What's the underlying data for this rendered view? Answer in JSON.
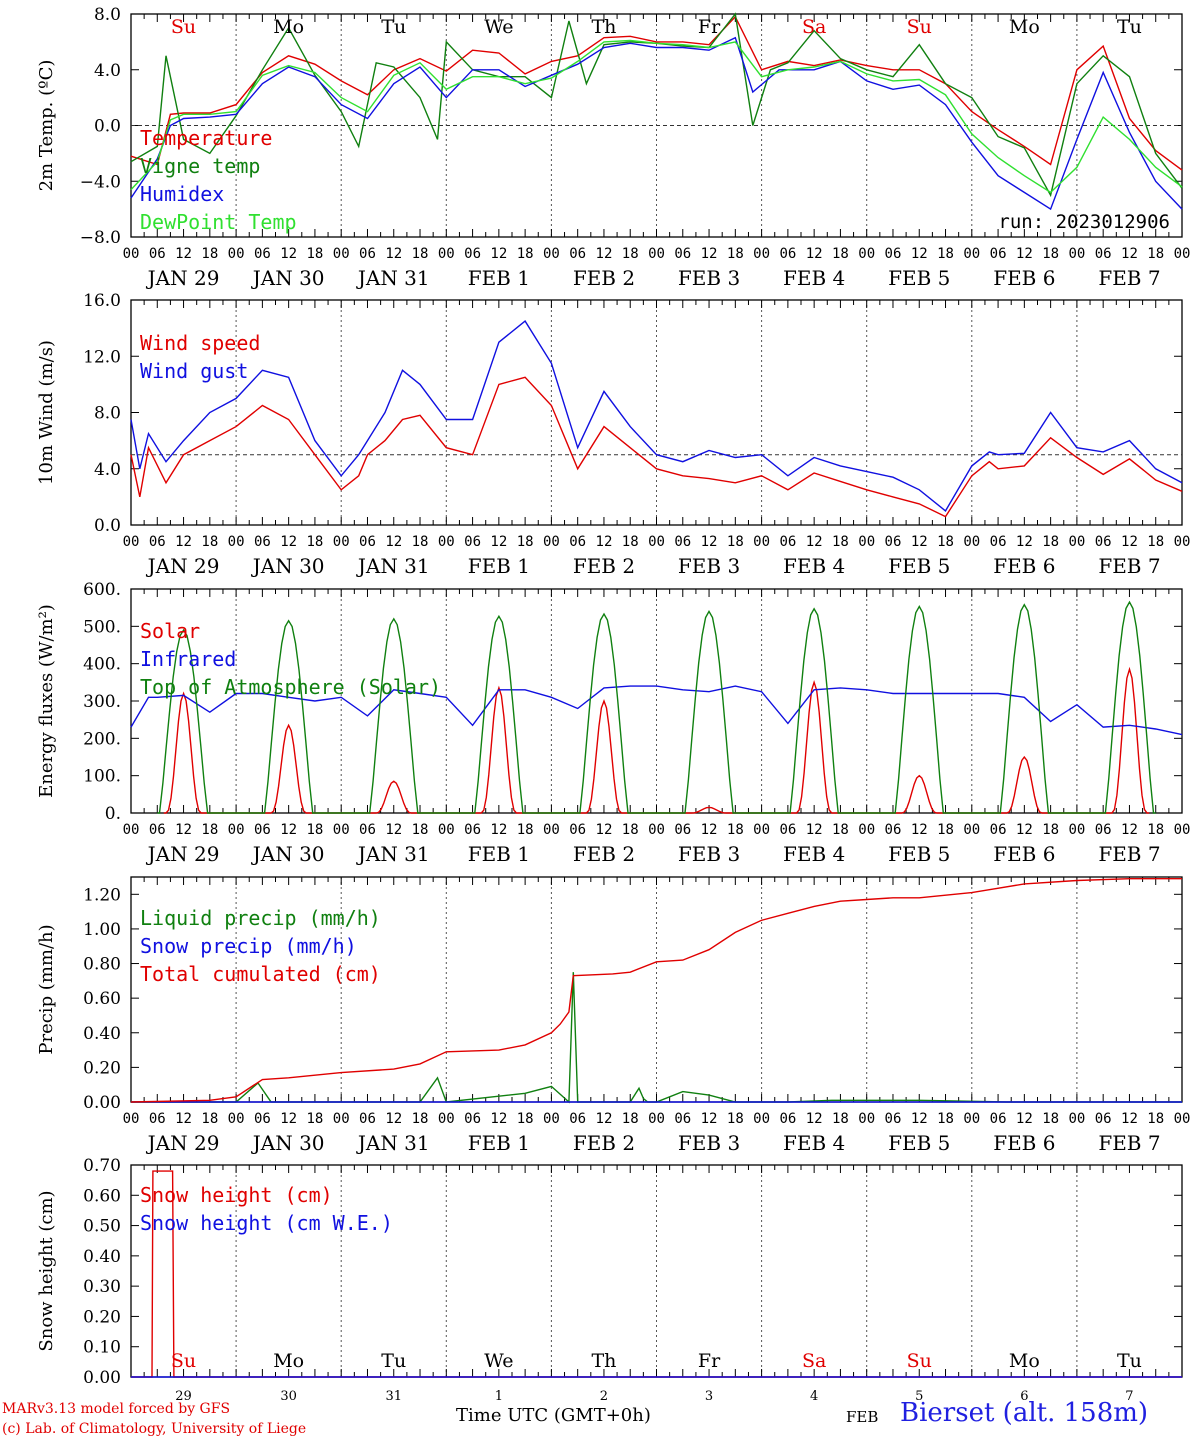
{
  "colors": {
    "red": "#e00000",
    "green": "#108010",
    "blue": "#1010e0",
    "lightgreen": "#30e030",
    "black": "#000000",
    "darkgreen": "#006000"
  },
  "day_labels": [
    {
      "label": "Su",
      "color": "#e00000"
    },
    {
      "label": "Mo",
      "color": "#000000"
    },
    {
      "label": "Tu",
      "color": "#000000"
    },
    {
      "label": "We",
      "color": "#000000"
    },
    {
      "label": "Th",
      "color": "#000000"
    },
    {
      "label": "Fr",
      "color": "#000000"
    },
    {
      "label": "Sa",
      "color": "#e00000"
    },
    {
      "label": "Su",
      "color": "#e00000"
    },
    {
      "label": "Mo",
      "color": "#000000"
    },
    {
      "label": "Tu",
      "color": "#000000"
    }
  ],
  "date_labels": [
    "JAN 29",
    "JAN 30",
    "JAN 31",
    "FEB  1",
    "FEB  2",
    "FEB  3",
    "FEB  4",
    "FEB  5",
    "FEB  6",
    "FEB  7"
  ],
  "hour_ticks": [
    "00",
    "06",
    "12",
    "18"
  ],
  "bottom_day_numbers": [
    "29",
    "30",
    "31",
    "1",
    "2",
    "3",
    "4",
    "5",
    "6",
    "7"
  ],
  "footer": {
    "model_line1": "MARv3.13 model forced by GFS",
    "model_line2": "(c) Lab. of Climatology, University of Liege",
    "time_label": "Time UTC (GMT+0h)",
    "month_label": "FEB",
    "station": "Bierset (alt. 158m)"
  },
  "chart_data": [
    {
      "type": "line",
      "ylabel": "2m Temp. (ºC)",
      "ylim": [
        -8.0,
        8.0
      ],
      "yticks": [
        "8.0",
        "4.0",
        "0.0",
        "−4.0",
        "−8.0"
      ],
      "ytick_values": [
        8,
        4,
        0,
        -4,
        -8
      ],
      "reference_line": 0,
      "annotation": "run: 2023012906",
      "x_unit": "hours since JAN 29 00 UTC",
      "series": [
        {
          "name": "Temperature",
          "color": "#e00000",
          "x": [
            0,
            6,
            9,
            12,
            18,
            24,
            30,
            36,
            42,
            48,
            54,
            60,
            66,
            72,
            78,
            84,
            90,
            96,
            102,
            108,
            114,
            120,
            126,
            132,
            138,
            144,
            150,
            156,
            162,
            168,
            174,
            180,
            186,
            192,
            198,
            204,
            210,
            216,
            222,
            228,
            234,
            240
          ],
          "y": [
            -2.2,
            -2.8,
            0.8,
            0.9,
            0.9,
            1.5,
            3.8,
            5.0,
            4.4,
            3.2,
            2.2,
            4.0,
            4.8,
            3.9,
            5.4,
            5.2,
            3.7,
            4.6,
            5.0,
            6.3,
            6.4,
            6.0,
            6.0,
            5.8,
            7.8,
            4.0,
            4.6,
            4.3,
            4.7,
            4.3,
            4.0,
            4.0,
            3.0,
            1.0,
            -0.3,
            -1.5,
            -2.8,
            4.0,
            5.7,
            0.5,
            -1.8,
            -3.2
          ]
        },
        {
          "name": "Vigne temp",
          "color": "#108010",
          "x": [
            0,
            6,
            8,
            12,
            18,
            24,
            30,
            36,
            42,
            48,
            52,
            56,
            60,
            66,
            70,
            72,
            78,
            84,
            90,
            96,
            100,
            104,
            108,
            114,
            120,
            126,
            132,
            138,
            142,
            146,
            150,
            156,
            162,
            168,
            174,
            180,
            186,
            192,
            198,
            204,
            210,
            216,
            222,
            228,
            234,
            240
          ],
          "y": [
            -2.6,
            -1.5,
            5.0,
            -1.0,
            -2.0,
            0.7,
            4.0,
            7.0,
            3.6,
            1.0,
            -1.5,
            4.5,
            4.2,
            2.0,
            -1.0,
            6.0,
            4.0,
            3.5,
            3.5,
            2.0,
            7.5,
            3.0,
            5.8,
            6.0,
            5.9,
            5.7,
            5.6,
            8.0,
            0.0,
            4.0,
            4.5,
            6.8,
            4.8,
            4.0,
            3.5,
            5.8,
            3.0,
            2.0,
            -0.8,
            -1.6,
            -5.0,
            3.0,
            5.0,
            3.5,
            -2.0,
            -4.5
          ]
        },
        {
          "name": "Humidex",
          "color": "#1010e0",
          "x": [
            0,
            6,
            9,
            12,
            18,
            24,
            30,
            36,
            42,
            48,
            54,
            60,
            66,
            72,
            78,
            84,
            90,
            96,
            102,
            108,
            114,
            120,
            126,
            132,
            138,
            142,
            148,
            156,
            162,
            168,
            174,
            180,
            186,
            192,
            198,
            204,
            210,
            216,
            222,
            228,
            234,
            240
          ],
          "y": [
            -5.2,
            -2.4,
            0.0,
            0.5,
            0.6,
            0.8,
            3.0,
            4.2,
            3.5,
            1.5,
            0.5,
            3.0,
            4.2,
            2.0,
            4.0,
            4.0,
            2.8,
            3.6,
            4.4,
            5.6,
            5.9,
            5.6,
            5.6,
            5.4,
            6.3,
            2.4,
            4.0,
            4.0,
            4.6,
            3.2,
            2.6,
            2.9,
            1.5,
            -1.2,
            -3.6,
            -4.8,
            -6.0,
            -1.0,
            3.8,
            -0.5,
            -4.0,
            -6.0
          ]
        },
        {
          "name": "DewPoint Temp",
          "color": "#30e030",
          "x": [
            0,
            6,
            9,
            12,
            18,
            24,
            30,
            36,
            42,
            48,
            54,
            60,
            66,
            72,
            78,
            84,
            90,
            96,
            102,
            108,
            114,
            120,
            126,
            132,
            138,
            144,
            150,
            156,
            162,
            168,
            174,
            180,
            186,
            192,
            198,
            204,
            210,
            216,
            222,
            228,
            234,
            240
          ],
          "y": [
            -4.6,
            -2.6,
            0.4,
            0.8,
            0.8,
            1.0,
            3.6,
            4.3,
            3.8,
            2.0,
            1.0,
            3.6,
            4.5,
            2.6,
            3.5,
            3.5,
            3.0,
            3.4,
            4.6,
            6.0,
            6.1,
            5.9,
            5.8,
            5.6,
            6.0,
            3.5,
            4.0,
            4.2,
            4.6,
            3.7,
            3.2,
            3.3,
            2.2,
            -0.6,
            -2.3,
            -3.6,
            -4.8,
            -3.0,
            0.6,
            -1.0,
            -3.0,
            -4.4
          ]
        }
      ]
    },
    {
      "type": "line",
      "ylabel": "10m Wind (m/s)",
      "ylim": [
        0.0,
        16.0
      ],
      "yticks": [
        "16.0",
        "12.0",
        "8.0",
        "4.0",
        "0.0"
      ],
      "ytick_values": [
        16,
        12,
        8,
        4,
        0
      ],
      "reference_line": 5,
      "series": [
        {
          "name": "Wind speed",
          "color": "#e00000",
          "x": [
            0,
            2,
            4,
            8,
            12,
            18,
            24,
            30,
            36,
            42,
            48,
            52,
            54,
            58,
            62,
            66,
            72,
            78,
            84,
            90,
            96,
            102,
            108,
            114,
            120,
            126,
            132,
            138,
            144,
            150,
            156,
            162,
            168,
            174,
            180,
            186,
            192,
            196,
            198,
            204,
            210,
            216,
            222,
            228,
            234,
            240
          ],
          "y": [
            5.0,
            2.0,
            5.5,
            3.0,
            5.0,
            6.0,
            7.0,
            8.5,
            7.5,
            5.0,
            2.5,
            3.5,
            5.0,
            6.0,
            7.5,
            7.8,
            5.5,
            5.0,
            10.0,
            10.5,
            8.5,
            4.0,
            7.0,
            5.5,
            4.0,
            3.5,
            3.3,
            3.0,
            3.5,
            2.5,
            3.7,
            3.1,
            2.5,
            2.0,
            1.5,
            0.6,
            3.5,
            4.5,
            4.0,
            4.2,
            6.2,
            4.8,
            3.6,
            4.7,
            3.2,
            2.4
          ]
        },
        {
          "name": "Wind gust",
          "color": "#1010e0",
          "x": [
            0,
            2,
            4,
            8,
            12,
            18,
            24,
            30,
            36,
            42,
            48,
            52,
            54,
            58,
            62,
            66,
            72,
            78,
            84,
            90,
            96,
            102,
            108,
            114,
            120,
            126,
            132,
            138,
            144,
            150,
            156,
            162,
            168,
            174,
            180,
            186,
            192,
            196,
            198,
            204,
            210,
            216,
            222,
            228,
            234,
            240
          ],
          "y": [
            7.5,
            4.0,
            6.5,
            4.5,
            6.0,
            8.0,
            9.0,
            11.0,
            10.5,
            6.0,
            3.5,
            5.0,
            6.0,
            8.0,
            11.0,
            10.0,
            7.5,
            7.5,
            13.0,
            14.5,
            11.5,
            5.5,
            9.5,
            7.0,
            5.0,
            4.5,
            5.3,
            4.8,
            5.0,
            3.5,
            4.8,
            4.2,
            3.8,
            3.4,
            2.5,
            1.0,
            4.2,
            5.2,
            5.0,
            5.1,
            8.0,
            5.5,
            5.2,
            6.0,
            4.0,
            3.0
          ]
        }
      ]
    },
    {
      "type": "line",
      "ylabel": "Energy fluxes (W/m²)",
      "ylim": [
        0.0,
        600.0
      ],
      "yticks": [
        "600.",
        "500.",
        "400.",
        "300.",
        "200.",
        "100.",
        "0."
      ],
      "ytick_values": [
        600,
        500,
        400,
        300,
        200,
        100,
        0
      ],
      "series": [
        {
          "name": "Solar",
          "color": "#e00000",
          "peaks": [
            320,
            235,
            85,
            335,
            300,
            15,
            350,
            100,
            150,
            385
          ]
        },
        {
          "name": "Infrared",
          "color": "#1010e0",
          "x": [
            0,
            4,
            6,
            12,
            18,
            24,
            30,
            36,
            42,
            48,
            54,
            60,
            66,
            72,
            78,
            84,
            90,
            96,
            102,
            108,
            114,
            120,
            126,
            132,
            138,
            144,
            150,
            156,
            162,
            168,
            174,
            180,
            186,
            192,
            198,
            204,
            210,
            216,
            222,
            228,
            234,
            240
          ],
          "y": [
            230,
            310,
            310,
            315,
            270,
            320,
            320,
            310,
            300,
            310,
            260,
            330,
            320,
            310,
            235,
            330,
            330,
            310,
            280,
            335,
            340,
            340,
            330,
            325,
            340,
            325,
            240,
            330,
            335,
            330,
            320,
            320,
            320,
            320,
            320,
            310,
            245,
            290,
            230,
            235,
            225,
            210
          ]
        },
        {
          "name": "Top of Atmosphere (Solar)",
          "color": "#108010",
          "peaks": [
            490,
            515,
            520,
            527,
            533,
            540,
            547,
            553,
            558,
            565
          ]
        }
      ]
    },
    {
      "type": "line",
      "ylabel": "Precip (mm/h)",
      "ylim": [
        0.0,
        1.3
      ],
      "yticks": [
        "1.20",
        "1.00",
        "0.80",
        "0.60",
        "0.40",
        "0.20",
        "0.00"
      ],
      "ytick_values": [
        1.2,
        1.0,
        0.8,
        0.6,
        0.4,
        0.2,
        0.0
      ],
      "series": [
        {
          "name": "Liquid precip (mm/h)",
          "color": "#108010",
          "x": [
            0,
            24,
            29,
            32,
            36,
            48,
            66,
            70,
            72,
            90,
            96,
            100,
            101,
            102,
            104,
            114,
            116,
            117,
            118,
            120,
            126,
            132,
            138,
            150,
            160,
            170,
            180,
            200,
            220,
            240
          ],
          "y": [
            0,
            0,
            0.11,
            0,
            0,
            0,
            0,
            0.14,
            0,
            0.05,
            0.09,
            0,
            0.75,
            0,
            0,
            0,
            0.08,
            0.02,
            0,
            0,
            0.06,
            0.04,
            0,
            0,
            0.01,
            0.01,
            0.01,
            0,
            0,
            0
          ]
        },
        {
          "name": "Snow precip (mm/h)",
          "color": "#1010e0",
          "x": [
            0,
            240
          ],
          "y": [
            0,
            0
          ]
        },
        {
          "name": "Total cumulated (cm)",
          "color": "#e00000",
          "x": [
            0,
            18,
            24,
            30,
            36,
            48,
            60,
            66,
            72,
            84,
            90,
            96,
            98,
            100,
            101,
            110,
            114,
            120,
            126,
            132,
            138,
            144,
            150,
            156,
            162,
            168,
            174,
            180,
            192,
            204,
            216,
            228,
            240
          ],
          "y": [
            0,
            0.01,
            0.03,
            0.13,
            0.14,
            0.17,
            0.19,
            0.22,
            0.29,
            0.3,
            0.33,
            0.4,
            0.45,
            0.52,
            0.73,
            0.74,
            0.75,
            0.81,
            0.82,
            0.88,
            0.98,
            1.05,
            1.09,
            1.13,
            1.16,
            1.17,
            1.18,
            1.18,
            1.21,
            1.26,
            1.28,
            1.29,
            1.29
          ]
        }
      ]
    },
    {
      "type": "line",
      "ylabel": "Snow height (cm)",
      "ylim": [
        0.0,
        0.7
      ],
      "yticks": [
        "0.70",
        "0.60",
        "0.50",
        "0.40",
        "0.30",
        "0.20",
        "0.10",
        "0.00"
      ],
      "ytick_values": [
        0.7,
        0.6,
        0.5,
        0.4,
        0.3,
        0.2,
        0.1,
        0.0
      ],
      "series": [
        {
          "name": "Snow height (cm)",
          "color": "#e00000",
          "x": [
            0,
            4.8,
            5.0,
            9.5,
            9.8,
            240
          ],
          "y": [
            0,
            0,
            0.68,
            0.68,
            0,
            0
          ]
        },
        {
          "name": "Snow height (cm W.E.)",
          "color": "#1010e0",
          "x": [
            0,
            240
          ],
          "y": [
            0,
            0
          ]
        }
      ]
    }
  ]
}
